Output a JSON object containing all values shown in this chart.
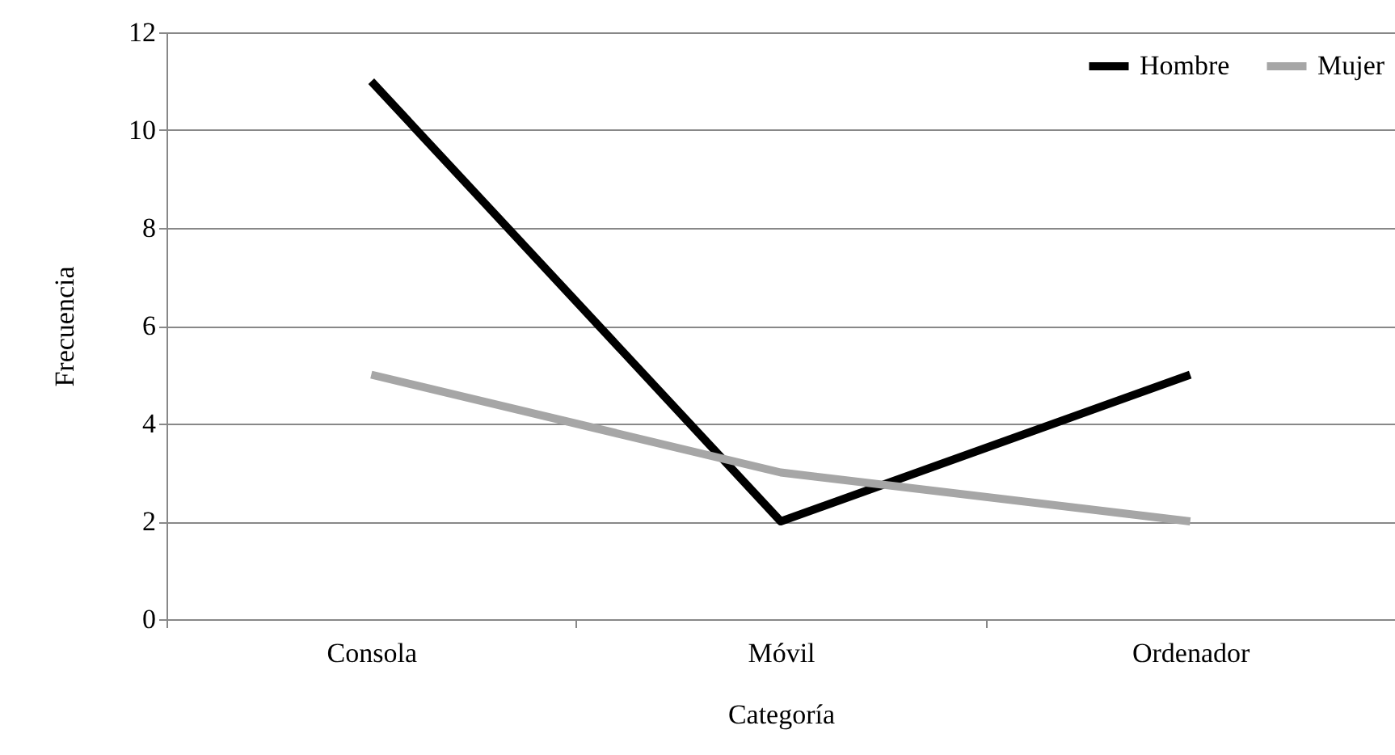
{
  "chart_data": {
    "type": "line",
    "xlabel": "Categoría",
    "ylabel": "Frecuencia",
    "categories": [
      "Consola",
      "Móvil",
      "Ordenador"
    ],
    "series": [
      {
        "name": "Hombre",
        "color": "#000000",
        "values": [
          11,
          2,
          5
        ]
      },
      {
        "name": "Mujer",
        "color": "#a6a6a6",
        "values": [
          5,
          3,
          2
        ]
      }
    ],
    "ylim": [
      0,
      12
    ],
    "yticks": [
      0,
      2,
      4,
      6,
      8,
      10,
      12
    ],
    "grid": "y",
    "legend": "top right",
    "marker": "none",
    "line_style": "solid"
  }
}
